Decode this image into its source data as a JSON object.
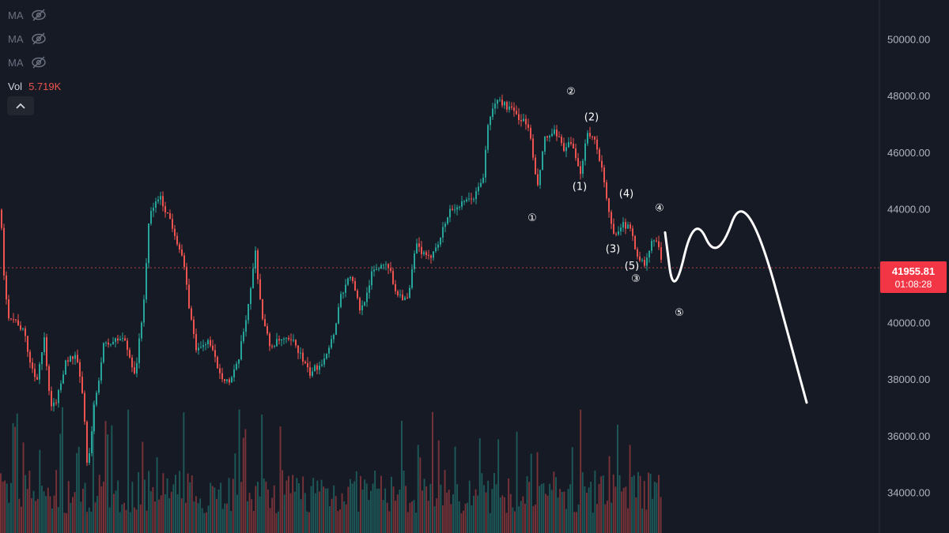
{
  "legend": {
    "indicators": [
      {
        "label": "MA",
        "icon": "eye-off-icon"
      },
      {
        "label": "MA",
        "icon": "eye-off-icon"
      },
      {
        "label": "MA",
        "icon": "eye-off-icon"
      }
    ],
    "volume": {
      "label": "Vol",
      "value": "5.719K"
    },
    "collapse_icon": "chevron-up-icon"
  },
  "price_label": {
    "value": "41955.81",
    "countdown": "01:08:28"
  },
  "colors": {
    "background": "#161a25",
    "up": "#26a69a",
    "down": "#ef5350",
    "axis_text": "#b2b5be",
    "drawing": "#ffffff",
    "price_label_bg": "#f23645"
  },
  "chart_data": {
    "type": "candlestick",
    "y_axis": {
      "side": "right",
      "ticks": [
        "50000.00",
        "48000.00",
        "46000.00",
        "44000.00",
        "42000.00",
        "40000.00",
        "38000.00",
        "36000.00",
        "34000.00"
      ],
      "range": [
        32600,
        51400
      ]
    },
    "last_price": 41955.81,
    "grid": false,
    "price_path": [
      [
        0,
        44000
      ],
      [
        3,
        41800
      ],
      [
        10,
        40300
      ],
      [
        22,
        40000
      ],
      [
        30,
        39600
      ],
      [
        38,
        38500
      ],
      [
        45,
        38000
      ],
      [
        55,
        39400
      ],
      [
        63,
        36900
      ],
      [
        72,
        37400
      ],
      [
        82,
        38700
      ],
      [
        95,
        38800
      ],
      [
        103,
        37600
      ],
      [
        110,
        34800
      ],
      [
        118,
        37000
      ],
      [
        130,
        39200
      ],
      [
        155,
        39500
      ],
      [
        170,
        38200
      ],
      [
        180,
        40500
      ],
      [
        188,
        43800
      ],
      [
        200,
        44500
      ],
      [
        215,
        43600
      ],
      [
        230,
        42300
      ],
      [
        240,
        40200
      ],
      [
        248,
        39000
      ],
      [
        262,
        39400
      ],
      [
        278,
        38200
      ],
      [
        290,
        37900
      ],
      [
        300,
        38600
      ],
      [
        312,
        40500
      ],
      [
        322,
        42500
      ],
      [
        330,
        40300
      ],
      [
        340,
        39200
      ],
      [
        355,
        39400
      ],
      [
        372,
        39300
      ],
      [
        390,
        38200
      ],
      [
        405,
        38600
      ],
      [
        420,
        39500
      ],
      [
        430,
        41000
      ],
      [
        442,
        41700
      ],
      [
        455,
        40400
      ],
      [
        470,
        41800
      ],
      [
        488,
        42200
      ],
      [
        500,
        41100
      ],
      [
        515,
        40800
      ],
      [
        525,
        42800
      ],
      [
        540,
        42200
      ],
      [
        555,
        43000
      ],
      [
        568,
        44000
      ],
      [
        585,
        44200
      ],
      [
        600,
        44500
      ],
      [
        610,
        45200
      ],
      [
        617,
        47200
      ],
      [
        628,
        47900
      ],
      [
        642,
        47600
      ],
      [
        658,
        47200
      ],
      [
        668,
        46900
      ],
      [
        678,
        44700
      ],
      [
        688,
        46500
      ],
      [
        700,
        46700
      ],
      [
        712,
        46200
      ],
      [
        722,
        46300
      ],
      [
        732,
        45200
      ],
      [
        742,
        46800
      ],
      [
        752,
        46400
      ],
      [
        760,
        45500
      ],
      [
        767,
        44100
      ],
      [
        775,
        43100
      ],
      [
        784,
        43500
      ],
      [
        797,
        43300
      ],
      [
        805,
        42400
      ],
      [
        815,
        42000
      ],
      [
        822,
        42800
      ],
      [
        828,
        43000
      ],
      [
        835,
        42300
      ]
    ],
    "projection": [
      [
        841,
        43200
      ],
      [
        852,
        40800
      ],
      [
        878,
        43900
      ],
      [
        907,
        42100
      ],
      [
        944,
        45000
      ],
      [
        1020,
        37200
      ]
    ],
    "wave_labels": [
      {
        "text": "①",
        "x": 673,
        "price": 43700
      },
      {
        "text": "②",
        "x": 722,
        "price": 48150
      },
      {
        "text": "(2)",
        "x": 748,
        "price": 47250
      },
      {
        "text": "(1)",
        "x": 733,
        "price": 44800
      },
      {
        "text": "(4)",
        "x": 792,
        "price": 44550
      },
      {
        "text": "④",
        "x": 834,
        "price": 44050
      },
      {
        "text": "(3)",
        "x": 775,
        "price": 42600
      },
      {
        "text": "(5)",
        "x": 799,
        "price": 42000
      },
      {
        "text": "③",
        "x": 804,
        "price": 41550
      },
      {
        "text": "⑤",
        "x": 859,
        "price": 40350
      }
    ]
  }
}
